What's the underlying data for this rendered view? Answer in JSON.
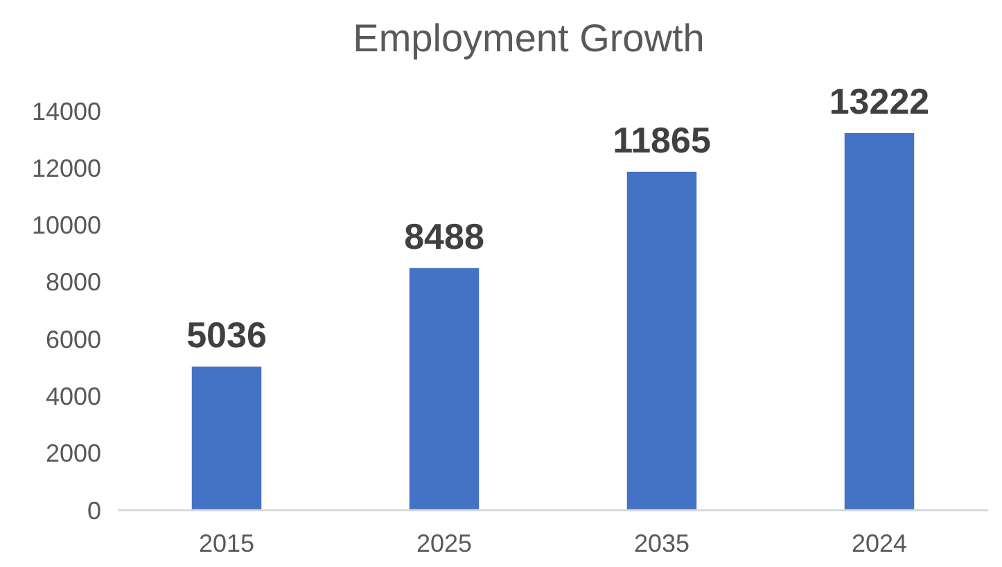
{
  "chart_data": {
    "type": "bar",
    "title": "Employment Growth",
    "categories": [
      "2015",
      "2025",
      "2035",
      "2024"
    ],
    "values": [
      5036,
      8488,
      11865,
      13222
    ],
    "color": "#4472c4",
    "ylim": [
      0,
      14000
    ],
    "yticks": [
      0,
      2000,
      4000,
      6000,
      8000,
      10000,
      12000,
      14000
    ],
    "grid": false,
    "data_labels": true
  }
}
